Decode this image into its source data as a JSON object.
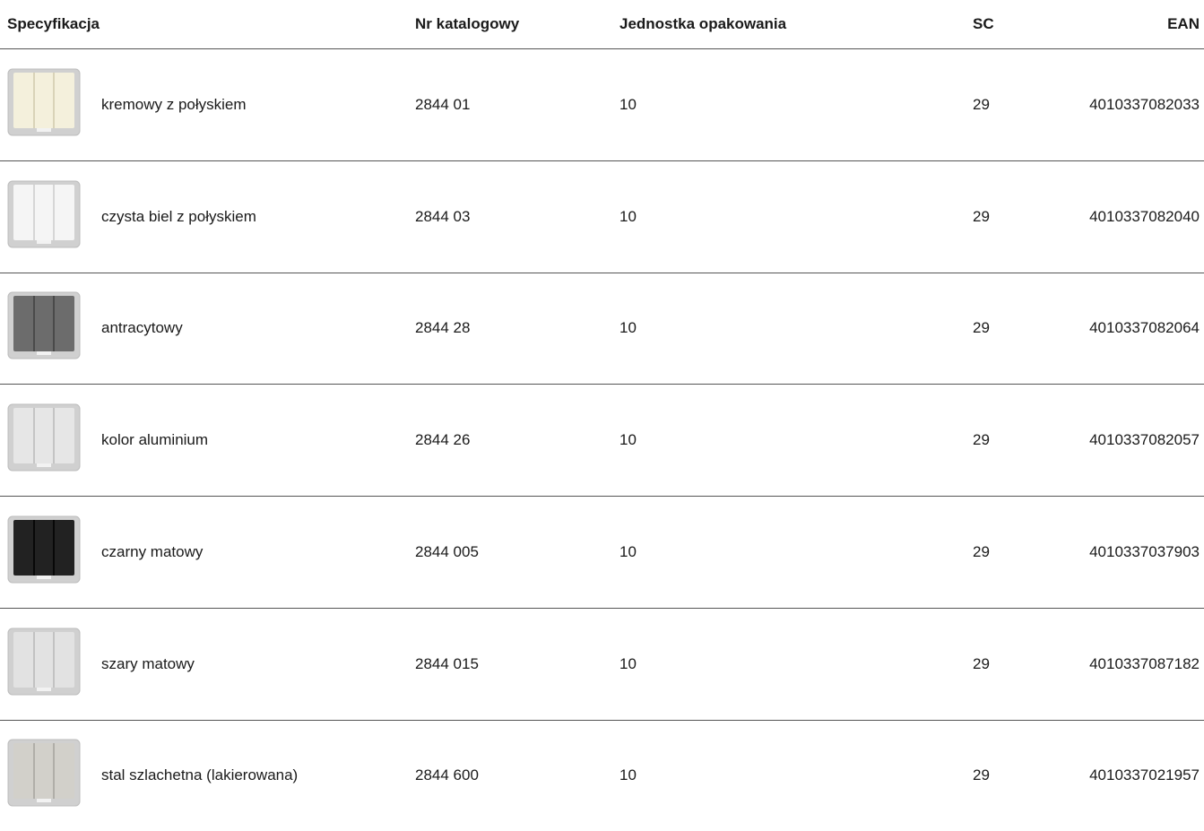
{
  "table": {
    "header": [
      "Specyfikacja",
      "Nr katalogowy",
      "Jednostka opakowania",
      "SC",
      "EAN"
    ],
    "rows": [
      [
        "kremowy z połyskiem",
        "2844 01",
        "10",
        "29",
        "4010337082033"
      ],
      [
        "czysta biel z połyskiem",
        "2844 03",
        "10",
        "29",
        "4010337082040"
      ],
      [
        "antracytowy",
        "2844 28",
        "10",
        "29",
        "4010337082064"
      ],
      [
        "kolor aluminium",
        "2844 26",
        "10",
        "29",
        "4010337082057"
      ],
      [
        "czarny matowy",
        "2844 005",
        "10",
        "29",
        "4010337037903"
      ],
      [
        "szary matowy",
        "2844 015",
        "10",
        "29",
        "4010337087182"
      ],
      [
        "stal szlachetna (lakierowana)",
        "2844 600",
        "10",
        "29",
        "4010337021957"
      ]
    ]
  }
}
